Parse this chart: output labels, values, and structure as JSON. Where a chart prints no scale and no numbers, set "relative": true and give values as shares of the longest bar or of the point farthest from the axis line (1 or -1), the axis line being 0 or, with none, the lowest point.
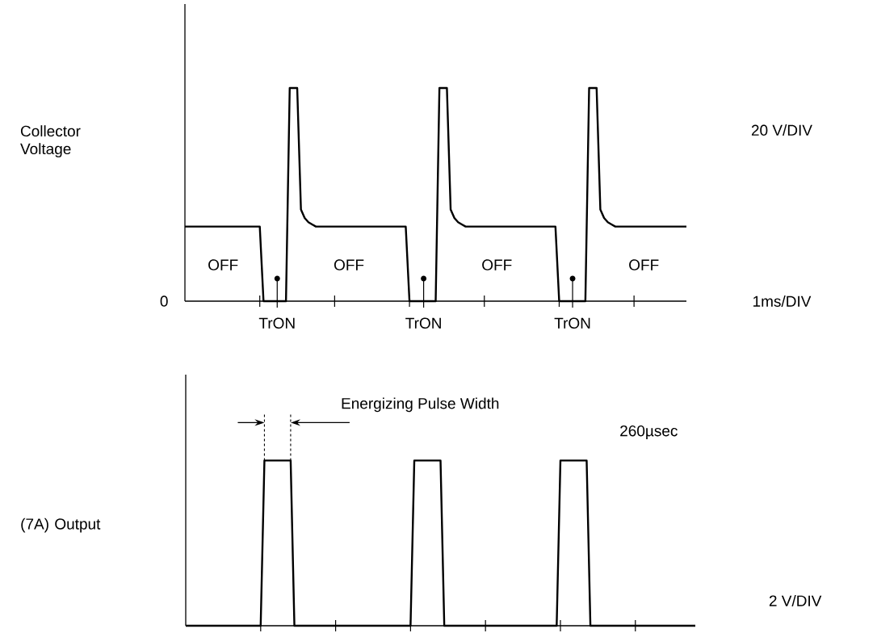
{
  "chart_data": [
    {
      "type": "line",
      "ylabel": "Collector Voltage",
      "relative": true,
      "color": "#000000",
      "categories": [
        null,
        null,
        null,
        null,
        null,
        null,
        null,
        null,
        null,
        null,
        null,
        null,
        null,
        null,
        null,
        null,
        null,
        null,
        null,
        null,
        null,
        null,
        null,
        null,
        null,
        null,
        null,
        null,
        null,
        null,
        null,
        null,
        null,
        null,
        null,
        null,
        null,
        null,
        null,
        null,
        null,
        null,
        null,
        null,
        null,
        null,
        null,
        null,
        null,
        null,
        null,
        null,
        null,
        null,
        null,
        null,
        null,
        null,
        null,
        null,
        null,
        null,
        null,
        null,
        null,
        null,
        null,
        null,
        null,
        null,
        null,
        null,
        null,
        null,
        null,
        null,
        null,
        null,
        null,
        null,
        null,
        null,
        null,
        null,
        null,
        null,
        null,
        null,
        null,
        null,
        null,
        null,
        null,
        null,
        null,
        null,
        null,
        null,
        null,
        null,
        null,
        null,
        null,
        null,
        null,
        null,
        null,
        null,
        null,
        null,
        null,
        null,
        null,
        null,
        null,
        null,
        null,
        null,
        null,
        null,
        null,
        null,
        null,
        null,
        null,
        null,
        null,
        null,
        null,
        null,
        null,
        null,
        null,
        null,
        null
      ],
      "values": [
        0.35,
        0.35,
        0.35,
        0.35,
        0.35,
        0.35,
        0.35,
        0.35,
        0.35,
        0.35,
        0.35,
        0.35,
        0.35,
        0.35,
        0.35,
        0.35,
        0.35,
        0.35,
        0.35,
        0.35,
        0.35,
        0,
        0,
        0,
        0,
        0,
        0,
        0,
        1,
        1,
        1,
        0.43,
        0.39,
        0.37,
        0.36,
        0.35,
        0.35,
        0.35,
        0.35,
        0.35,
        0.35,
        0.35,
        0.35,
        0.35,
        0.35,
        0.35,
        0.35,
        0.35,
        0.35,
        0.35,
        0.35,
        0.35,
        0.35,
        0.35,
        0.35,
        0.35,
        0.35,
        0.35,
        0.35,
        0.35,
        0,
        0,
        0,
        0,
        0,
        0,
        0,
        0,
        1,
        1,
        1,
        0.43,
        0.39,
        0.37,
        0.36,
        0.35,
        0.35,
        0.35,
        0.35,
        0.35,
        0.35,
        0.35,
        0.35,
        0.35,
        0.35,
        0.35,
        0.35,
        0.35,
        0.35,
        0.35,
        0.35,
        0.35,
        0.35,
        0.35,
        0.35,
        0.35,
        0.35,
        0.35,
        0.35,
        0.35,
        0,
        0,
        0,
        0,
        0,
        0,
        0,
        0,
        1,
        1,
        1,
        0.43,
        0.39,
        0.37,
        0.36,
        0.35,
        0.35,
        0.35,
        0.35,
        0.35,
        0.35,
        0.35,
        0.35,
        0.35,
        0.35,
        0.35,
        0.35,
        0.35,
        0.35,
        0.35,
        0.35,
        0.35,
        0.35,
        0.35,
        0.35
      ],
      "annotations": [
        "20 V/DIV",
        "1ms/DIV",
        "0",
        "OFF",
        "OFF",
        "OFF",
        "OFF",
        "TrON",
        "TrON",
        "TrON"
      ]
    },
    {
      "type": "line",
      "ylabel": "(7A) Output",
      "relative": true,
      "color": "#000000",
      "categories": [
        null,
        null,
        null,
        null,
        null,
        null,
        null,
        null,
        null,
        null,
        null,
        null,
        null,
        null,
        null,
        null,
        null,
        null,
        null,
        null,
        null,
        null,
        null,
        null,
        null,
        null,
        null,
        null,
        null,
        null,
        null,
        null,
        null,
        null,
        null,
        null,
        null,
        null,
        null,
        null,
        null,
        null,
        null,
        null,
        null,
        null,
        null,
        null,
        null,
        null,
        null,
        null,
        null,
        null,
        null,
        null,
        null,
        null,
        null,
        null,
        null,
        null,
        null,
        null,
        null,
        null,
        null,
        null,
        null,
        null,
        null,
        null,
        null,
        null,
        null,
        null,
        null,
        null,
        null,
        null,
        null,
        null,
        null,
        null,
        null,
        null,
        null,
        null,
        null,
        null,
        null,
        null,
        null,
        null,
        null,
        null,
        null,
        null,
        null,
        null,
        null,
        null,
        null,
        null,
        null,
        null,
        null,
        null,
        null,
        null,
        null,
        null,
        null,
        null,
        null,
        null,
        null,
        null,
        null,
        null,
        null,
        null,
        null,
        null,
        null,
        null,
        null,
        null,
        null,
        null,
        null,
        null,
        null,
        null,
        null,
        null,
        null
      ],
      "values": [
        0,
        0,
        0,
        0,
        0,
        0,
        0,
        0,
        0,
        0,
        0,
        0,
        0,
        0,
        0,
        0,
        0,
        0,
        0,
        0,
        0,
        1,
        1,
        1,
        1,
        1,
        1,
        1,
        1,
        0,
        0,
        0,
        0,
        0,
        0,
        0,
        0,
        0,
        0,
        0,
        0,
        0,
        0,
        0,
        0,
        0,
        0,
        0,
        0,
        0,
        0,
        0,
        0,
        0,
        0,
        0,
        0,
        0,
        0,
        0,
        0,
        1,
        1,
        1,
        1,
        1,
        1,
        1,
        1,
        0,
        0,
        0,
        0,
        0,
        0,
        0,
        0,
        0,
        0,
        0,
        0,
        0,
        0,
        0,
        0,
        0,
        0,
        0,
        0,
        0,
        0,
        0,
        0,
        0,
        0,
        0,
        0,
        0,
        0,
        0,
        1,
        1,
        1,
        1,
        1,
        1,
        1,
        1,
        0,
        0,
        0,
        0,
        0,
        0,
        0,
        0,
        0,
        0,
        0,
        0,
        0,
        0,
        0,
        0,
        0,
        0,
        0,
        0,
        0,
        0,
        0,
        0,
        0,
        0,
        0,
        0,
        0
      ],
      "annotations": [
        "2 V/DIV",
        "Energizing Pulse Width",
        "260µsec"
      ]
    }
  ]
}
